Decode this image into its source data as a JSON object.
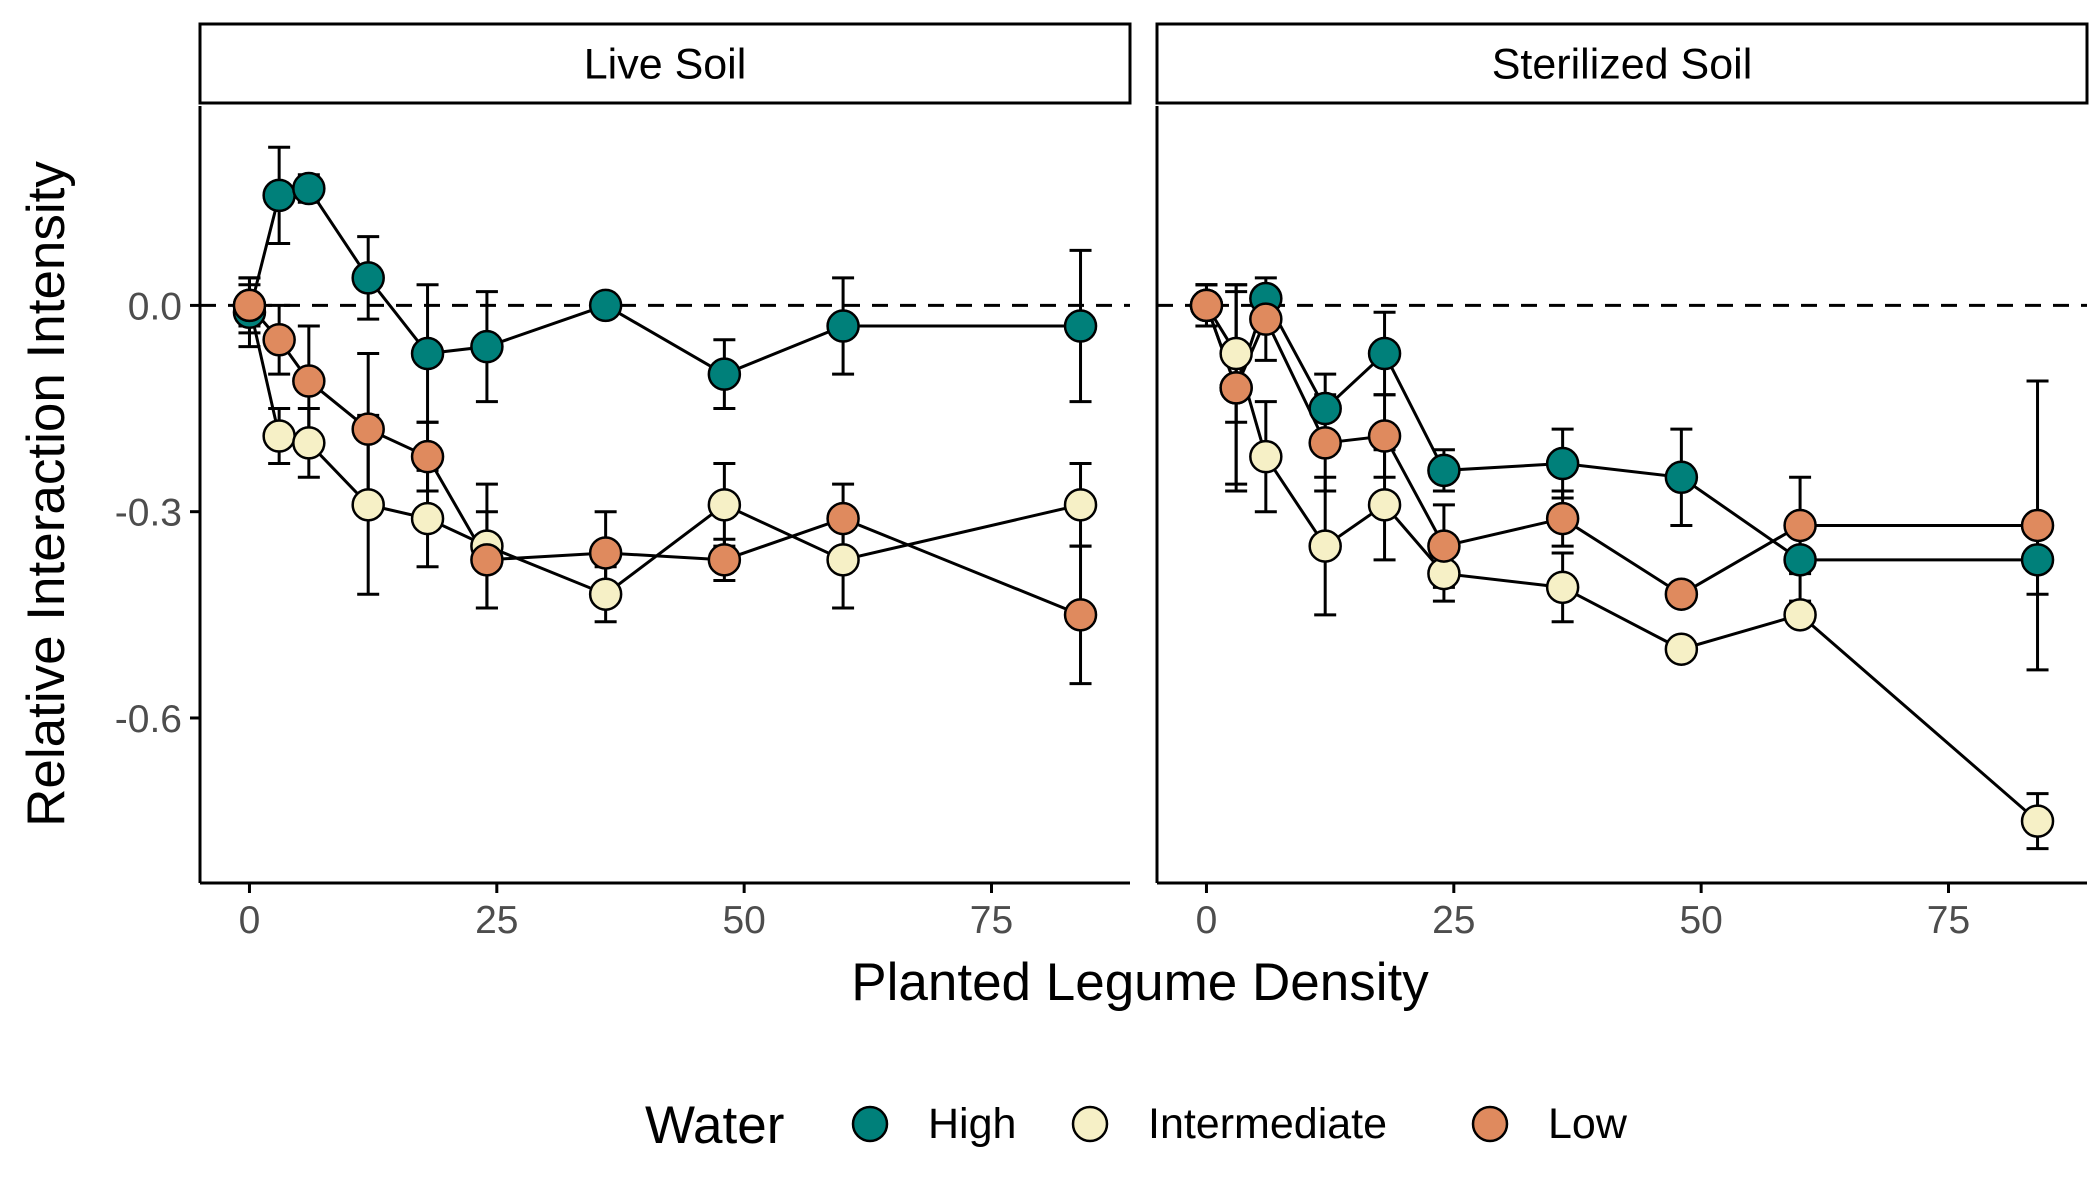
{
  "chart_data": {
    "type": "scatter",
    "subtype": "faceted line plot with error bars",
    "xlabel": "Planted Legume Density",
    "ylabel": "Relative Interaction Intensity",
    "x_ticks": [
      0,
      25,
      50,
      75
    ],
    "y_ticks": [
      0.0,
      -0.3,
      -0.6
    ],
    "y_tick_labels": [
      "0.0",
      "-0.3",
      "-0.6"
    ],
    "xlim": [
      -5,
      89
    ],
    "ylim": [
      -0.84,
      0.29
    ],
    "reference_line": {
      "y": 0,
      "style": "dashed"
    },
    "grid": false,
    "legend": {
      "title": "Water",
      "position": "bottom",
      "entries": [
        {
          "name": "High",
          "color": "#00807a"
        },
        {
          "name": "Intermediate",
          "color": "#f6f0c6"
        },
        {
          "name": "Low",
          "color": "#df8a5e"
        }
      ]
    },
    "facets": [
      {
        "title": "Live Soil",
        "series": [
          {
            "name": "High",
            "color": "#00807a",
            "x": [
              0,
              3,
              6,
              12,
              18,
              24,
              36,
              48,
              60,
              84
            ],
            "y": [
              -0.01,
              0.16,
              0.17,
              0.04,
              -0.07,
              -0.06,
              0.0,
              -0.1,
              -0.03,
              -0.03
            ],
            "err": [
              0.05,
              0.07,
              0.02,
              0.06,
              0.1,
              0.08,
              0.0,
              0.05,
              0.07,
              0.11
            ]
          },
          {
            "name": "Intermediate",
            "color": "#f6f0c6",
            "x": [
              0,
              3,
              6,
              12,
              18,
              24,
              36,
              48,
              60,
              84
            ],
            "y": [
              0.0,
              -0.19,
              -0.2,
              -0.29,
              -0.31,
              -0.35,
              -0.42,
              -0.29,
              -0.37,
              -0.29
            ],
            "err": [
              0.03,
              0.04,
              0.05,
              0.13,
              0.07,
              0.09,
              0.04,
              0.06,
              0.07,
              0.06
            ]
          },
          {
            "name": "Low",
            "color": "#df8a5e",
            "x": [
              0,
              3,
              6,
              12,
              18,
              24,
              36,
              48,
              60,
              84
            ],
            "y": [
              0.0,
              -0.05,
              -0.11,
              -0.18,
              -0.22,
              -0.37,
              -0.36,
              -0.37,
              -0.31,
              -0.45
            ],
            "err": [
              0.04,
              0.05,
              0.08,
              0.11,
              0.05,
              0.07,
              0.06,
              0.03,
              0.05,
              0.1
            ]
          }
        ]
      },
      {
        "title": "Sterilized Soil",
        "series": [
          {
            "name": "High",
            "color": "#00807a",
            "x": [
              0,
              3,
              6,
              12,
              18,
              24,
              36,
              48,
              60,
              84
            ],
            "y": [
              0.0,
              -0.12,
              0.01,
              -0.15,
              -0.07,
              -0.24,
              -0.23,
              -0.25,
              -0.37,
              -0.37
            ],
            "err": [
              0.03,
              0.14,
              0.0,
              0.05,
              0.06,
              0.03,
              0.05,
              0.07,
              0.06,
              0.05
            ]
          },
          {
            "name": "Intermediate",
            "color": "#f6f0c6",
            "x": [
              0,
              3,
              6,
              12,
              18,
              24,
              36,
              48,
              60,
              84
            ],
            "y": [
              0.0,
              -0.07,
              -0.22,
              -0.35,
              -0.29,
              -0.39,
              -0.41,
              -0.5,
              -0.45,
              -0.75
            ],
            "err": [
              0.03,
              0.1,
              0.08,
              0.1,
              0.08,
              0.04,
              0.05,
              0.0,
              0.0,
              0.04
            ]
          },
          {
            "name": "Low",
            "color": "#df8a5e",
            "x": [
              0,
              3,
              6,
              12,
              18,
              24,
              36,
              48,
              60,
              84
            ],
            "y": [
              0.0,
              -0.12,
              -0.02,
              -0.2,
              -0.19,
              -0.35,
              -0.31,
              -0.42,
              -0.32,
              -0.32
            ],
            "err": [
              0.03,
              0.15,
              0.06,
              0.07,
              0.06,
              0.06,
              0.04,
              0.0,
              0.07,
              0.21
            ]
          }
        ]
      }
    ]
  }
}
